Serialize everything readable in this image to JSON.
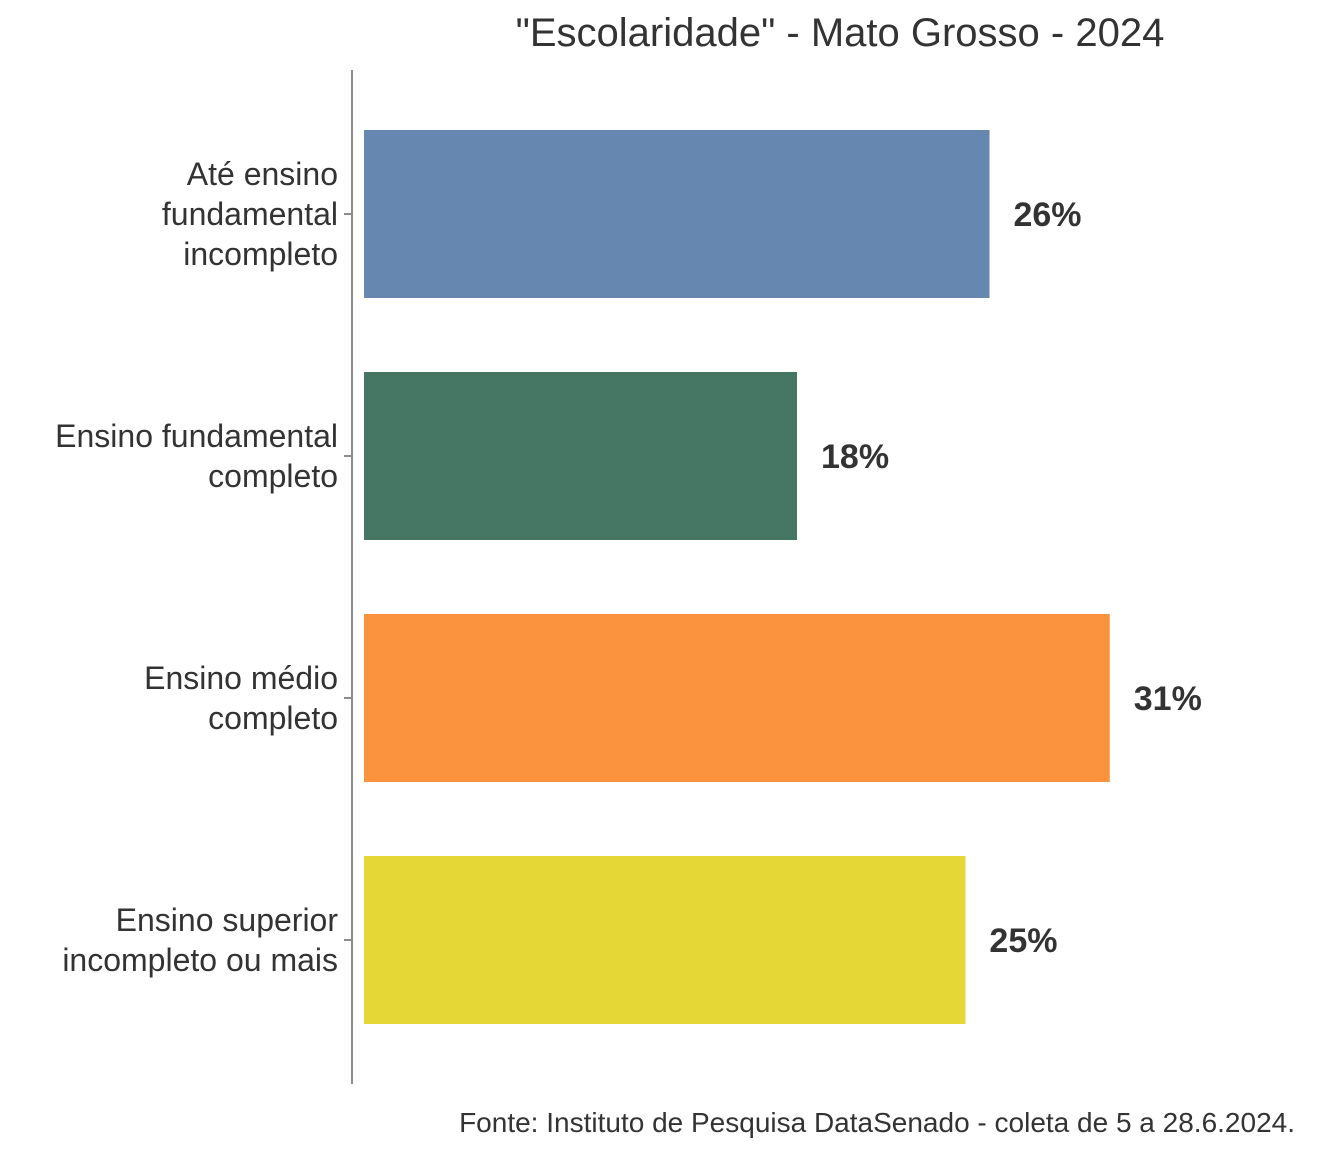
{
  "chart_data": {
    "type": "bar",
    "orientation": "horizontal",
    "title": "\"Escolaridade\" - Mato Grosso - 2024",
    "categories": [
      "Até ensino fundamental incompleto",
      "Ensino fundamental completo",
      "Ensino médio completo",
      "Ensino superior incompleto ou mais"
    ],
    "category_lines": [
      [
        "Até ensino",
        "fundamental",
        "incompleto"
      ],
      [
        "Ensino fundamental",
        "completo"
      ],
      [
        "Ensino médio",
        "completo"
      ],
      [
        "Ensino superior",
        "incompleto ou mais"
      ]
    ],
    "values": [
      26,
      18,
      31,
      25
    ],
    "value_labels": [
      "26%",
      "18%",
      "31%",
      "25%"
    ],
    "colors": [
      "#6688b0",
      "#467664",
      "#fb923e",
      "#e5d836"
    ],
    "xlim": [
      0,
      35
    ],
    "grid": false,
    "xaxis_visible": false,
    "source": "Fonte: Instituto de Pesquisa DataSenado - coleta de 5 a 28.6.2024."
  }
}
